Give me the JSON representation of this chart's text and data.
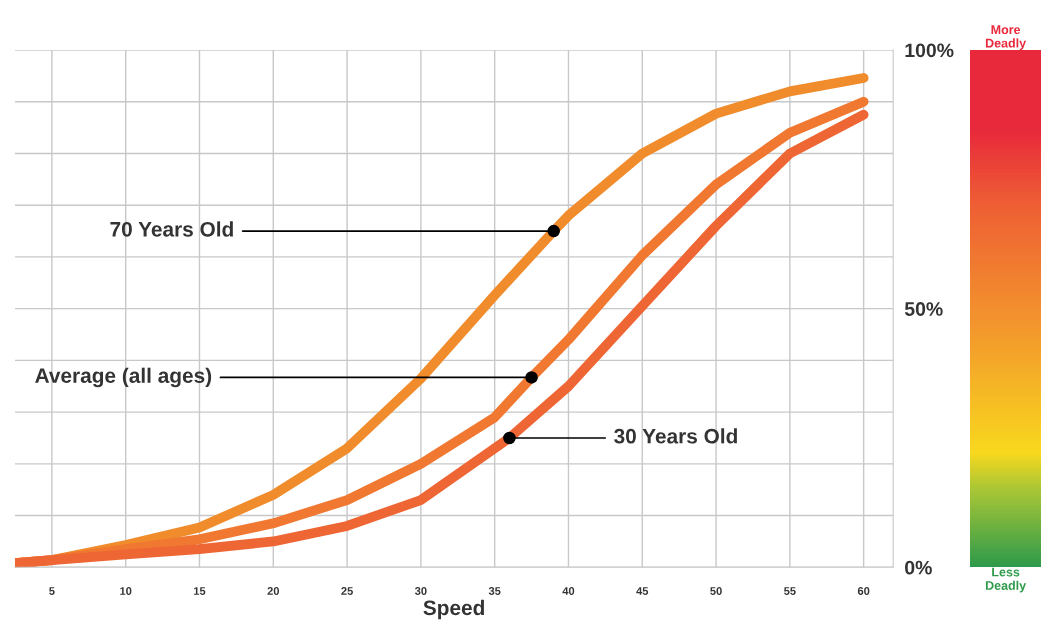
{
  "chart_data": {
    "type": "line",
    "xlabel": "Speed",
    "xlim": [
      2.5,
      62
    ],
    "xticks": [
      5,
      10,
      15,
      20,
      25,
      30,
      35,
      40,
      45,
      50,
      55,
      60
    ],
    "ylim": [
      0,
      100
    ],
    "yticks": [
      {
        "value": 0,
        "label": "0%"
      },
      {
        "value": 10,
        "label": null
      },
      {
        "value": 20,
        "label": null
      },
      {
        "value": 30,
        "label": null
      },
      {
        "value": 40,
        "label": null
      },
      {
        "value": 50,
        "label": "50%"
      },
      {
        "value": 60,
        "label": null
      },
      {
        "value": 70,
        "label": null
      },
      {
        "value": 80,
        "label": null
      },
      {
        "value": 90,
        "label": null
      },
      {
        "value": 100,
        "label": "100%"
      }
    ],
    "grid": true,
    "marker": "none",
    "line_style": "solid",
    "clim": [
      0,
      100
    ],
    "cticks": [
      {
        "value": 0,
        "label": "Less Deadly"
      },
      {
        "value": 100,
        "label": "More Deadly"
      }
    ],
    "series": [
      {
        "x": [
          2.5,
          5,
          10,
          15,
          20,
          25,
          30,
          35,
          39,
          40,
          45,
          50,
          55,
          60
        ],
        "values": [
          0.8,
          1.4,
          4.3,
          7.7,
          14,
          23,
          36.5,
          52.6,
          65,
          68,
          80,
          87.7,
          92,
          94.6
        ],
        "color": "#f08c2c"
      },
      {
        "x": [
          2.5,
          5,
          10,
          15,
          20,
          25,
          30,
          35,
          37.5,
          40,
          45,
          50,
          55,
          60
        ],
        "values": [
          0.8,
          1.4,
          3.5,
          5.4,
          8.5,
          13,
          20,
          29,
          36.7,
          44,
          60.3,
          74,
          84,
          90
        ],
        "color": "#f07830"
      },
      {
        "x": [
          2.5,
          5,
          10,
          15,
          20,
          25,
          30,
          36,
          40,
          45,
          50,
          55,
          60
        ],
        "values": [
          0.8,
          1.4,
          2.5,
          3.5,
          5,
          8,
          13,
          25,
          35,
          50.5,
          66,
          80,
          87.5
        ],
        "color": "#ee6634"
      }
    ],
    "annotations": [
      {
        "text": "70 Years Old",
        "x": 39,
        "y": 65
      },
      {
        "text": "Average (all ages)",
        "x": 37.5,
        "y": 36.7
      },
      {
        "text": "30 Years Old",
        "x": 36,
        "y": 25
      }
    ]
  }
}
